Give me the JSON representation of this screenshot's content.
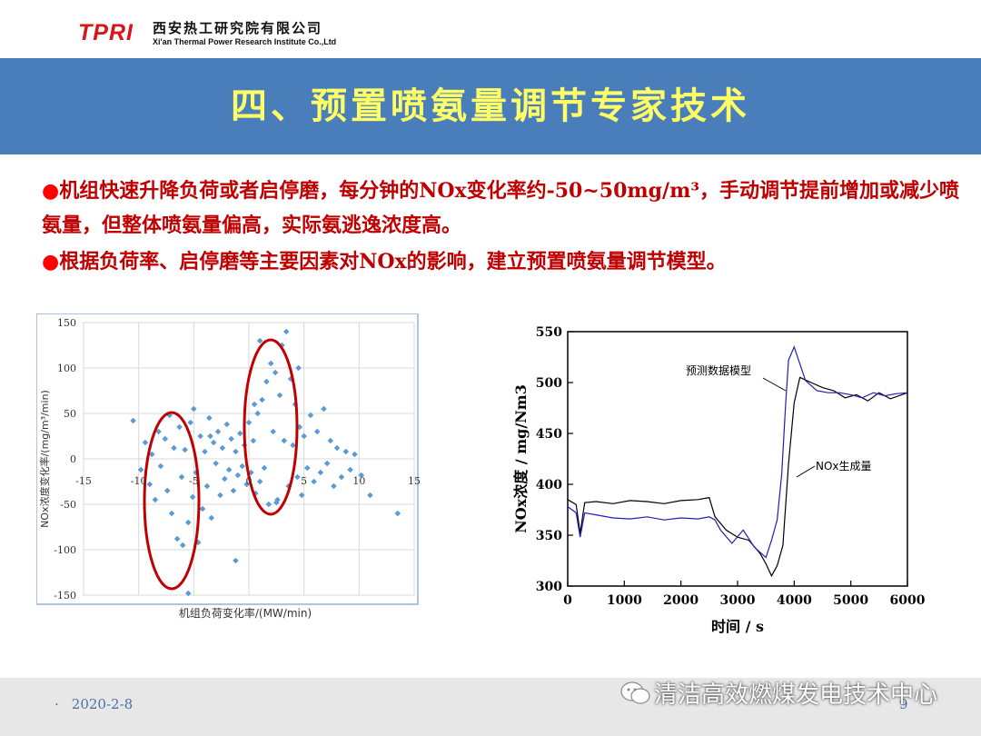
{
  "header": {
    "logo": "TPRI",
    "company_cn": "西安热工研究院有限公司",
    "company_en": "Xi'an Thermal Power Research Institute Co.,Ltd"
  },
  "title": "四、预置喷氨量调节专家技术",
  "bullets": [
    {
      "marker": "●",
      "text": "机组快速升降负荷或者启停磨，每分钟的NOx变化率约-50~50mg/m³，手动调节提前增加或减少喷氨量，但整体喷氨量偏高，实际氨逃逸浓度高。"
    },
    {
      "marker": "●",
      "text": "根据负荷率、启停磨等主要因素对NOx的影响，建立预置喷氨量调节模型。"
    }
  ],
  "footer": {
    "separator": "·",
    "date": "2020-2-8",
    "page": "9"
  },
  "watermark": {
    "text": "清洁高效燃煤发电技术中心",
    "icon": "wechat-icon"
  },
  "colors": {
    "title_band": "#4a7ebb",
    "title_text": "#ffff66",
    "bullet_text": "#c00000",
    "logo": "#d9141b",
    "scatter_point": "#5b9bd5",
    "ellipse": "#c00000",
    "series_model": "#1f1fb4",
    "series_actual": "#000000"
  },
  "chart_data": [
    {
      "type": "scatter",
      "xlabel": "机组负荷变化率/(MW/min)",
      "ylabel": "NOx浓度变化率/(mg/m³/min)",
      "xlim": [
        -15,
        15
      ],
      "ylim": [
        -150,
        150
      ],
      "x_ticks": [
        "-15",
        "-10",
        "-5",
        "0",
        "5",
        "10",
        "15"
      ],
      "y_ticks": [
        "150",
        "100",
        "50",
        "0",
        "-50",
        "-100",
        "-150"
      ],
      "grid": true,
      "points": [
        [
          -10.5,
          42
        ],
        [
          -9.8,
          -12
        ],
        [
          -9.4,
          18
        ],
        [
          -9.0,
          -28
        ],
        [
          -8.8,
          5
        ],
        [
          -8.5,
          -45
        ],
        [
          -8.2,
          30
        ],
        [
          -8.0,
          -8
        ],
        [
          -7.6,
          22
        ],
        [
          -7.4,
          -35
        ],
        [
          -7.2,
          48
        ],
        [
          -7.0,
          -60
        ],
        [
          -6.8,
          12
        ],
        [
          -6.5,
          -88
        ],
        [
          -6.3,
          35
        ],
        [
          -6.1,
          -20
        ],
        [
          -6.0,
          -95
        ],
        [
          -5.8,
          10
        ],
        [
          -5.5,
          -70
        ],
        [
          -5.3,
          40
        ],
        [
          -5.1,
          -42
        ],
        [
          -5.0,
          55
        ],
        [
          -4.8,
          -15
        ],
        [
          -4.6,
          -92
        ],
        [
          -4.4,
          25
        ],
        [
          -4.2,
          -55
        ],
        [
          -4.0,
          8
        ],
        [
          -3.8,
          -30
        ],
        [
          -3.6,
          45
        ],
        [
          -3.4,
          -65
        ],
        [
          -3.2,
          18
        ],
        [
          -3.0,
          -5
        ],
        [
          -2.8,
          30
        ],
        [
          -2.6,
          -40
        ],
        [
          -2.4,
          12
        ],
        [
          -2.2,
          -22
        ],
        [
          -2.0,
          38
        ],
        [
          -1.8,
          -12
        ],
        [
          -1.6,
          22
        ],
        [
          -1.4,
          -35
        ],
        [
          -1.2,
          8
        ],
        [
          -1.0,
          -18
        ],
        [
          -0.8,
          28
        ],
        [
          -0.6,
          -8
        ],
        [
          -0.4,
          15
        ],
        [
          -0.2,
          -28
        ],
        [
          0.0,
          40
        ],
        [
          0.2,
          -15
        ],
        [
          0.4,
          20
        ],
        [
          0.6,
          -38
        ],
        [
          0.8,
          50
        ],
        [
          1.0,
          -25
        ],
        [
          1.2,
          65
        ],
        [
          1.4,
          -10
        ],
        [
          1.6,
          85
        ],
        [
          1.8,
          -50
        ],
        [
          2.0,
          105
        ],
        [
          2.2,
          30
        ],
        [
          2.4,
          95
        ],
        [
          2.6,
          -45
        ],
        [
          2.8,
          70
        ],
        [
          3.0,
          125
        ],
        [
          3.2,
          20
        ],
        [
          3.4,
          140
        ],
        [
          3.6,
          -30
        ],
        [
          3.8,
          88
        ],
        [
          4.0,
          15
        ],
        [
          4.2,
          60
        ],
        [
          4.4,
          -20
        ],
        [
          4.6,
          35
        ],
        [
          4.8,
          -40
        ],
        [
          5.0,
          25
        ],
        [
          5.3,
          -10
        ],
        [
          5.6,
          48
        ],
        [
          5.9,
          -25
        ],
        [
          6.2,
          30
        ],
        [
          6.5,
          -15
        ],
        [
          6.8,
          55
        ],
        [
          7.1,
          -5
        ],
        [
          7.4,
          20
        ],
        [
          7.7,
          -30
        ],
        [
          8.0,
          12
        ],
        [
          8.4,
          -20
        ],
        [
          8.8,
          8
        ],
        [
          9.2,
          -12
        ],
        [
          9.6,
          5
        ],
        [
          10.2,
          -18
        ],
        [
          11.0,
          -40
        ],
        [
          13.5,
          -60
        ],
        [
          -5.5,
          -148
        ],
        [
          2.5,
          -48
        ],
        [
          1.0,
          130
        ],
        [
          -1.2,
          -112
        ],
        [
          0.5,
          60
        ],
        [
          -3.5,
          25
        ],
        [
          4.5,
          100
        ]
      ]
    },
    {
      "type": "line",
      "xlabel": "时间 / s",
      "ylabel": "NOx浓度 / mg/Nm3",
      "xlim": [
        0,
        6000
      ],
      "ylim": [
        300,
        550
      ],
      "x_ticks": [
        "0",
        "1000",
        "2000",
        "3000",
        "4000",
        "5000",
        "6000"
      ],
      "y_ticks": [
        "550",
        "500",
        "450",
        "400",
        "350",
        "300"
      ],
      "series": [
        {
          "name": "预测数据模型",
          "x": [
            0,
            150,
            220,
            300,
            500,
            800,
            1100,
            1400,
            1700,
            2000,
            2300,
            2500,
            2600,
            2700,
            2900,
            3100,
            3300,
            3500,
            3600,
            3700,
            3780,
            3850,
            3900,
            4000,
            4200,
            4400,
            4600,
            4800,
            5000,
            5200,
            5400,
            5600,
            5800,
            6000
          ],
          "y": [
            378,
            372,
            348,
            372,
            370,
            367,
            366,
            368,
            365,
            367,
            366,
            368,
            365,
            355,
            342,
            355,
            338,
            328,
            345,
            365,
            410,
            480,
            522,
            535,
            502,
            492,
            490,
            490,
            488,
            485,
            490,
            487,
            489,
            490
          ]
        },
        {
          "name": "NOx生成量",
          "x": [
            0,
            150,
            220,
            300,
            500,
            800,
            1100,
            1400,
            1700,
            2000,
            2300,
            2500,
            2600,
            2800,
            3000,
            3200,
            3400,
            3500,
            3600,
            3700,
            3800,
            3900,
            4000,
            4100,
            4300,
            4500,
            4700,
            4900,
            5100,
            5300,
            5500,
            5700,
            5900,
            6000
          ],
          "y": [
            385,
            380,
            352,
            382,
            383,
            381,
            384,
            383,
            381,
            384,
            385,
            387,
            368,
            355,
            348,
            345,
            332,
            322,
            310,
            320,
            340,
            420,
            480,
            505,
            500,
            495,
            492,
            485,
            488,
            482,
            490,
            484,
            488,
            490
          ]
        }
      ]
    }
  ]
}
